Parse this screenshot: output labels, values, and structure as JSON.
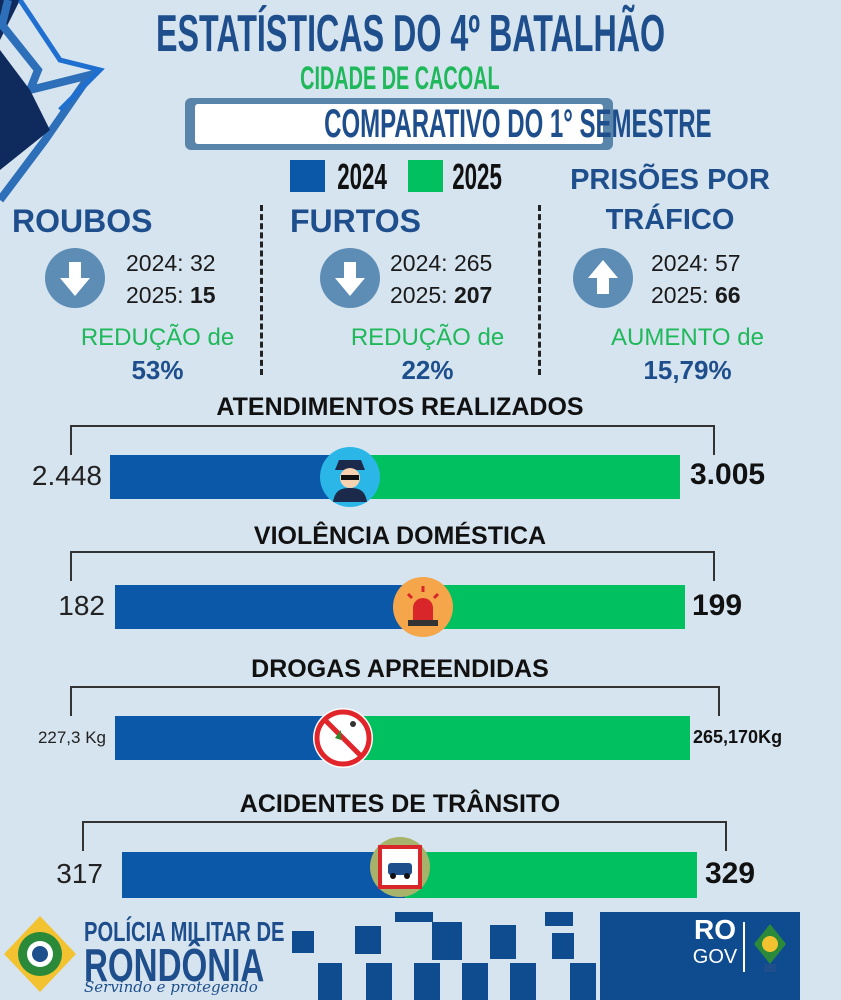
{
  "header": {
    "title": "ESTATÍSTICAS DO 4º BATALHÃO",
    "city": "CIDADE DE CACOAL",
    "subtitle": "COMPARATIVO DO 1° SEMESTRE"
  },
  "legend": [
    {
      "label": "2024",
      "color": "#0b57a8"
    },
    {
      "label": "2025",
      "color": "#00c060"
    }
  ],
  "stats": [
    {
      "title": "ROUBOS",
      "icon": "arrow-down-icon",
      "y2024": "2024: 32",
      "y2025_label": "2025: ",
      "y2025": "15",
      "change": "REDUÇÃO de",
      "pct": "53%"
    },
    {
      "title": "FURTOS",
      "icon": "arrow-down-icon",
      "y2024": "2024: 265",
      "y2025_label": "2025: ",
      "y2025": "207",
      "change": "REDUÇÃO de",
      "pct": "22%"
    },
    {
      "title1": "PRISÕES POR",
      "title2": "TRÁFICO",
      "icon": "arrow-up-icon",
      "y2024": "2024: 57",
      "y2025_label": "2025: ",
      "y2025": "66",
      "change": "AUMENTO de",
      "pct": "15,79%"
    }
  ],
  "comparisons": [
    {
      "title": "ATENDIMENTOS REALIZADOS",
      "v2024": "2.448",
      "v2025": "3.005",
      "icon": "police-officer-icon"
    },
    {
      "title": "VIOLÊNCIA DOMÉSTICA",
      "v2024": "182",
      "v2025": "199",
      "icon": "siren-icon"
    },
    {
      "title": "DROGAS APREENDIDAS",
      "v2024": "227,3 Kg",
      "v2025": "265,170Kg",
      "icon": "no-drugs-icon"
    },
    {
      "title": "ACIDENTES DE TRÂNSITO",
      "v2024": "317",
      "v2025": "329",
      "icon": "car-crash-icon"
    }
  ],
  "footer": {
    "org1": "POLÍCIA MILITAR DE",
    "org2": "RONDÔNIA",
    "motto": "Servindo e protegendo",
    "gov1": "RO",
    "gov2": "GOV"
  },
  "colors": {
    "blue": "#0b57a8",
    "green": "#00c060",
    "title": "#1e4f8c",
    "background": "#d6e4ef"
  }
}
